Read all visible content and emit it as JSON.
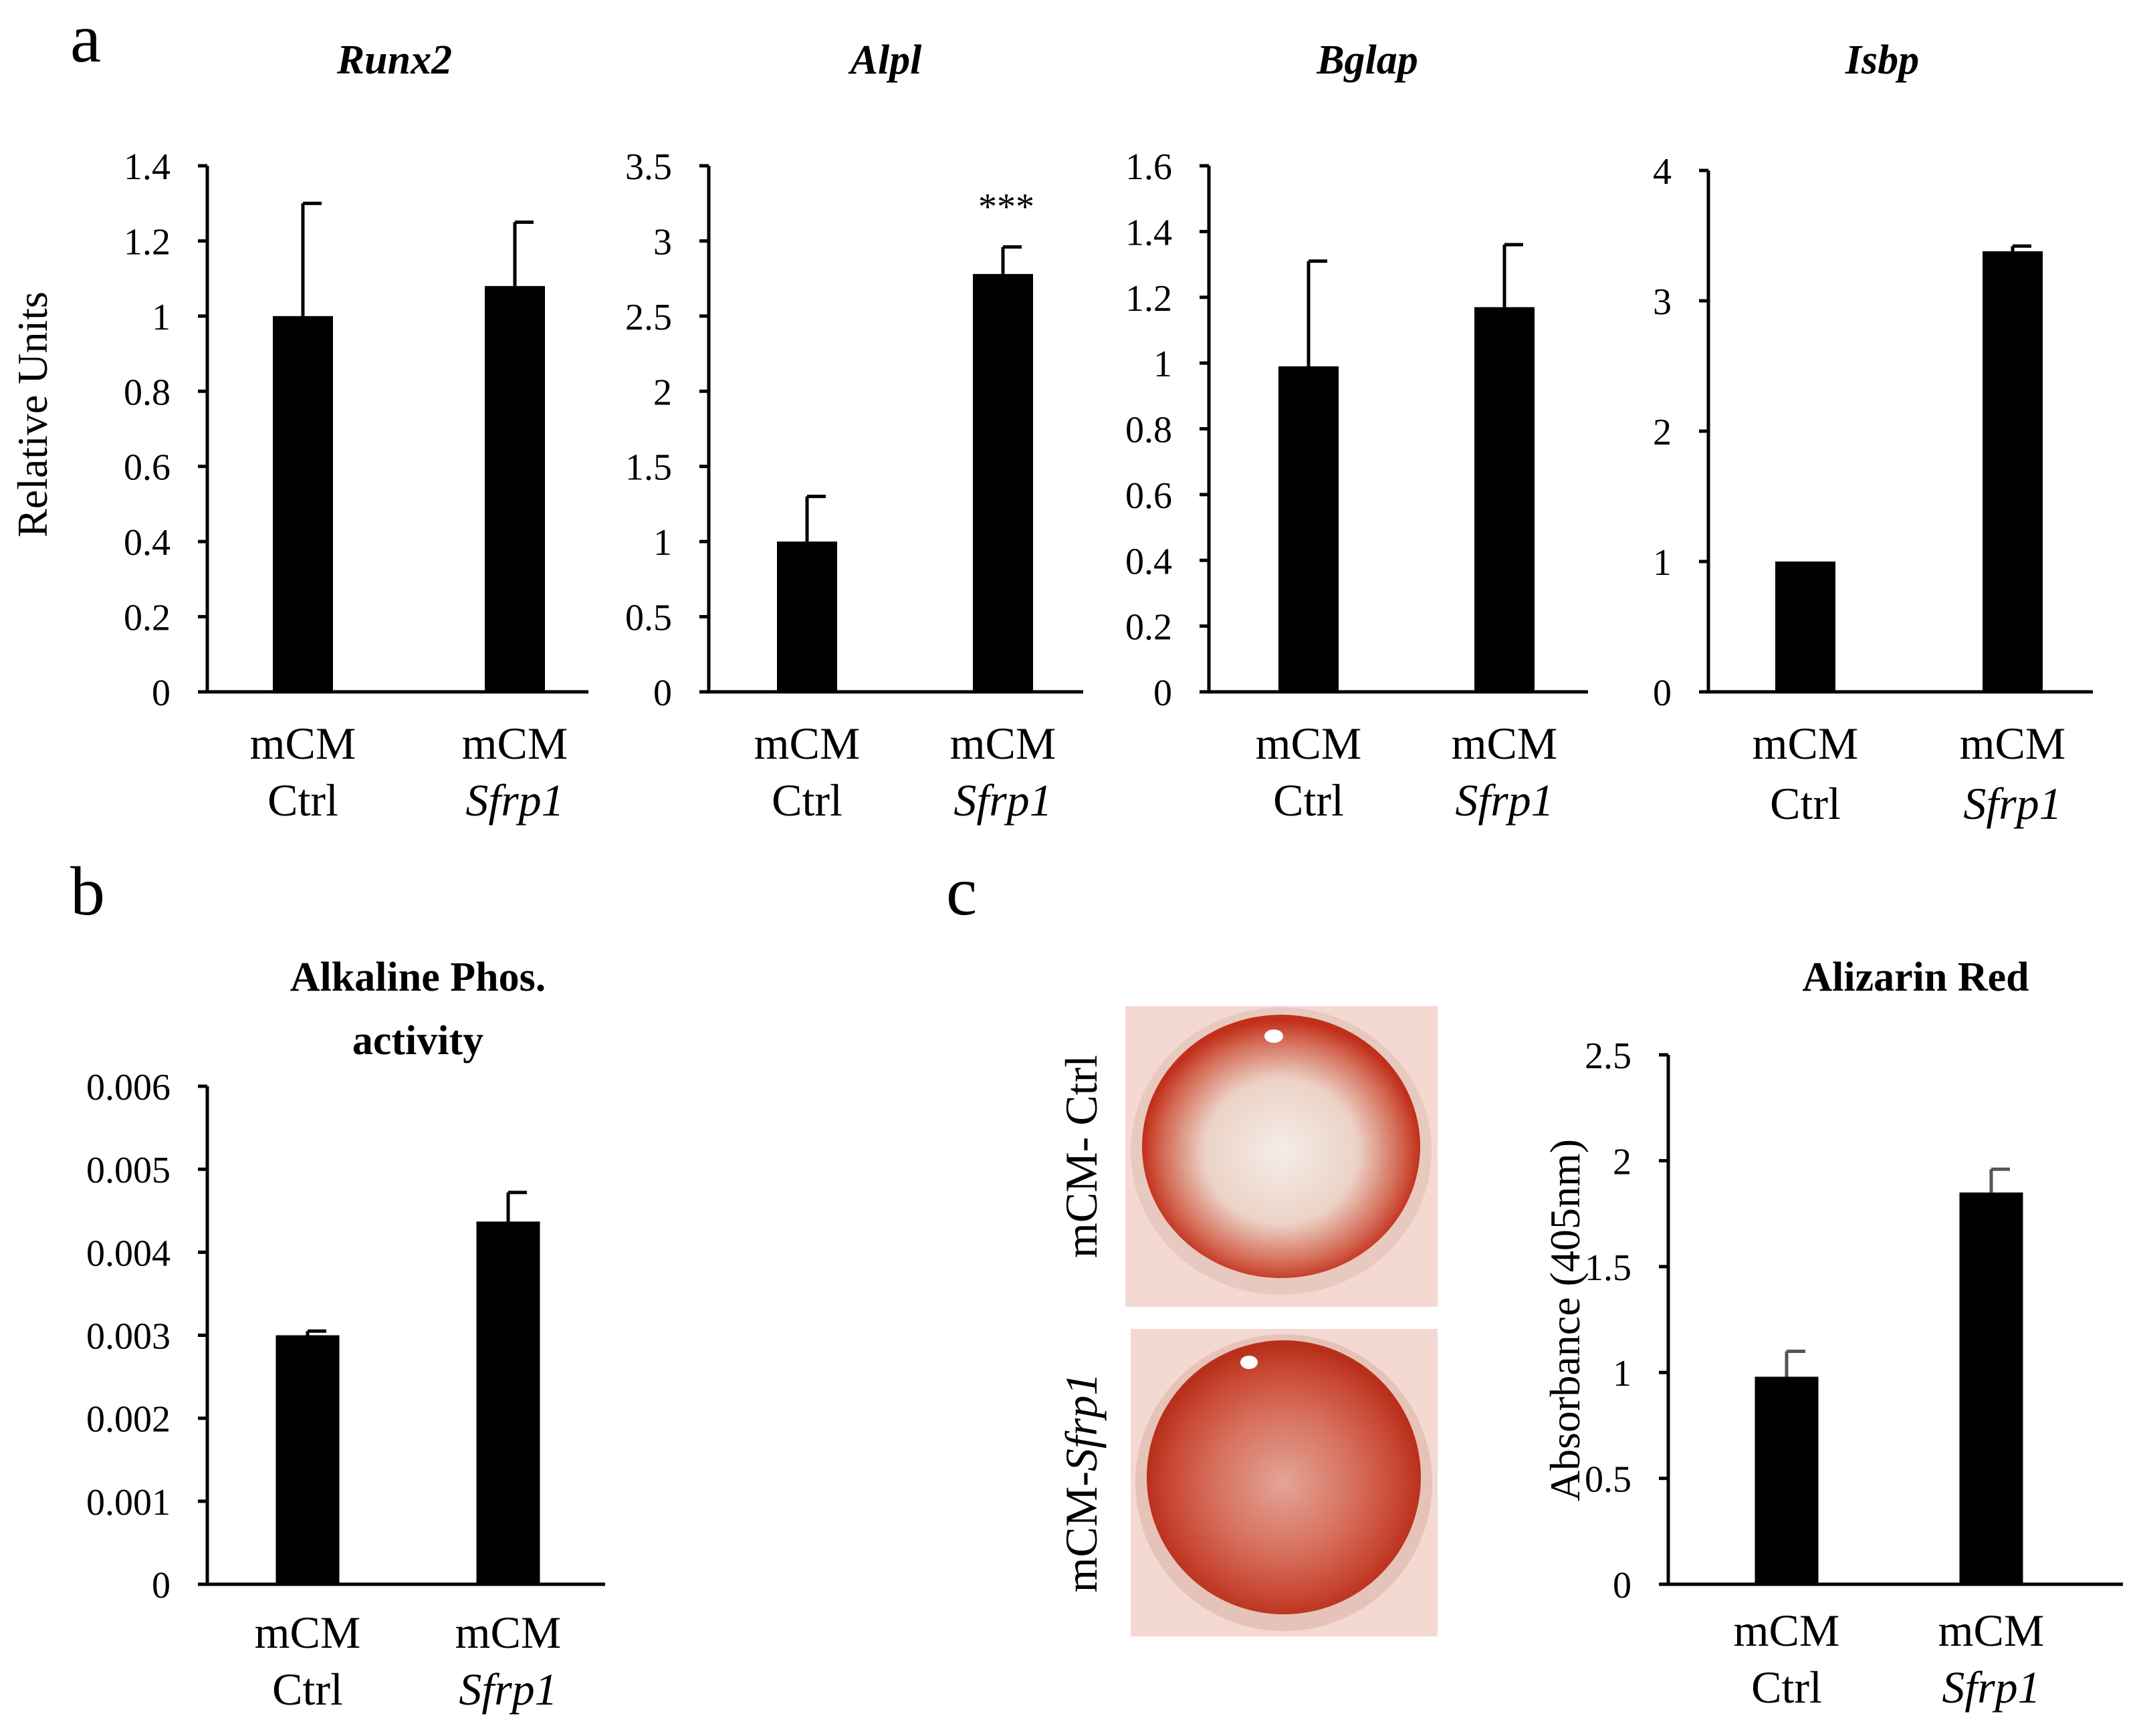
{
  "panels": {
    "a": "a",
    "b": "b",
    "c": "c"
  },
  "photo_labels": {
    "top": "mCM- Ctrl",
    "bottom_prefix": "mCM-",
    "bottom_italic": "Sfrp1"
  },
  "photo_colors": {
    "rim": "#c8321f",
    "dish_bg": "#f4d9d2",
    "ctrl_center": "#f0e6e0",
    "sfrp1_center": "#d9776a"
  },
  "chart_data": [
    {
      "type": "bar",
      "title": "Runx2",
      "title_italic": true,
      "ylabel": "Relative Units",
      "categories": [
        [
          "mCM",
          "Ctrl"
        ],
        [
          "mCM",
          "Sfrp1"
        ]
      ],
      "values": [
        1.0,
        1.08
      ],
      "errors": [
        0.3,
        0.17
      ],
      "ylim": [
        0,
        1.4
      ],
      "yticks": [
        "0",
        "0.2",
        "0.4",
        "0.6",
        "0.8",
        "1",
        "1.2",
        "1.4"
      ],
      "annotations": [
        "",
        ""
      ],
      "grid": false,
      "bar_color": "#000000"
    },
    {
      "type": "bar",
      "title": "Alpl",
      "title_italic": true,
      "ylabel": "",
      "categories": [
        [
          "mCM",
          "Ctrl"
        ],
        [
          "mCM",
          "Sfrp1"
        ]
      ],
      "values": [
        1.0,
        2.78
      ],
      "errors": [
        0.3,
        0.18
      ],
      "ylim": [
        0,
        3.5
      ],
      "yticks": [
        "0",
        "0.5",
        "1",
        "1.5",
        "2",
        "2.5",
        "3",
        "3.5"
      ],
      "annotations": [
        "",
        "***"
      ],
      "grid": false,
      "bar_color": "#000000"
    },
    {
      "type": "bar",
      "title": "Bglap",
      "title_italic": true,
      "ylabel": "",
      "categories": [
        [
          "mCM",
          "Ctrl"
        ],
        [
          "mCM",
          "Sfrp1"
        ]
      ],
      "values": [
        0.99,
        1.17
      ],
      "errors": [
        0.32,
        0.19
      ],
      "ylim": [
        0,
        1.6
      ],
      "yticks": [
        "0",
        "0.2",
        "0.4",
        "0.6",
        "0.8",
        "1",
        "1.2",
        "1.4",
        "1.6"
      ],
      "annotations": [
        "",
        ""
      ],
      "grid": false,
      "bar_color": "#000000"
    },
    {
      "type": "bar",
      "title": "Isbp",
      "title_italic": true,
      "ylabel": "",
      "categories": [
        [
          "mCM",
          "Ctrl"
        ],
        [
          "mCM",
          "Sfrp1"
        ]
      ],
      "values": [
        1.0,
        3.38
      ],
      "errors": [
        0.0,
        0.04
      ],
      "ylim": [
        0,
        4
      ],
      "yticks": [
        "0",
        "1",
        "2",
        "3",
        "4"
      ],
      "annotations": [
        "",
        ""
      ],
      "grid": false,
      "bar_color": "#000000"
    },
    {
      "type": "bar",
      "title": [
        "Alkaline Phos.",
        "activity"
      ],
      "title_italic": false,
      "ylabel": "",
      "categories": [
        [
          "mCM",
          "Ctrl"
        ],
        [
          "mCM",
          "Sfrp1"
        ]
      ],
      "values": [
        0.003,
        0.00437
      ],
      "errors": [
        5e-05,
        0.00035
      ],
      "ylim": [
        0,
        0.006
      ],
      "yticks": [
        "0",
        "0.001",
        "0.002",
        "0.003",
        "0.004",
        "0.005",
        "0.006"
      ],
      "annotations": [
        "",
        ""
      ],
      "grid": false,
      "bar_color": "#000000"
    },
    {
      "type": "bar",
      "title": "Alizarin Red",
      "title_italic": false,
      "ylabel": "Absorbance (405nm)",
      "categories": [
        [
          "mCM",
          "Ctrl"
        ],
        [
          "mCM",
          "Sfrp1"
        ]
      ],
      "values": [
        0.98,
        1.85
      ],
      "errors": [
        0.12,
        0.11
      ],
      "ylim": [
        0,
        2.5
      ],
      "yticks": [
        "0",
        "0.5",
        "1",
        "1.5",
        "2",
        "2.5"
      ],
      "annotations": [
        "",
        ""
      ],
      "grid": false,
      "bar_color": "#000000",
      "error_color": "#555555"
    }
  ]
}
